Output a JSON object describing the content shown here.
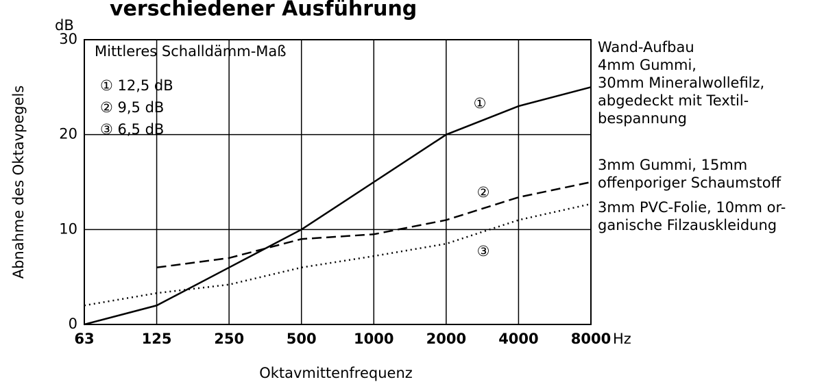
{
  "chart_data": {
    "type": "line",
    "title": "verschiedener Ausführung",
    "y_unit": "dB",
    "y_label": "Abnahme des Oktavpegels",
    "x_label": "Oktavmittenfrequenz",
    "x_unit": "Hz",
    "categories": [
      "63",
      "125",
      "250",
      "500",
      "1000",
      "2000",
      "4000",
      "8000"
    ],
    "ylim": [
      0,
      30
    ],
    "yticks": [
      0,
      10,
      20,
      30
    ],
    "grid": true,
    "color": "#000000",
    "legend_box": {
      "title": "Mittleres Schalldämm-Maß",
      "entries": [
        "① 12,5 dB",
        "② 9,5 dB",
        "③ 6,5 dB"
      ]
    },
    "series": [
      {
        "name": "①",
        "line_style": "solid",
        "description": [
          "Wand-Aufbau",
          "4mm Gummi,",
          "30mm Mineralwollefilz,",
          "abgedeckt mit Textil-",
          "bespannung"
        ],
        "values": [
          0,
          2,
          6,
          10,
          15,
          20,
          23,
          25
        ]
      },
      {
        "name": "②",
        "line_style": "dashed",
        "description": [
          "3mm Gummi, 15mm",
          "offenporiger Schaumstoff"
        ],
        "values": [
          null,
          6,
          7,
          9,
          9.5,
          11,
          13.4,
          15
        ]
      },
      {
        "name": "③",
        "line_style": "dotted",
        "description": [
          "3mm PVC-Folie, 10mm or-",
          "ganische Filzauskleidung"
        ],
        "values": [
          2,
          3.3,
          4.2,
          6,
          7.2,
          8.5,
          11,
          12.7
        ]
      }
    ]
  }
}
